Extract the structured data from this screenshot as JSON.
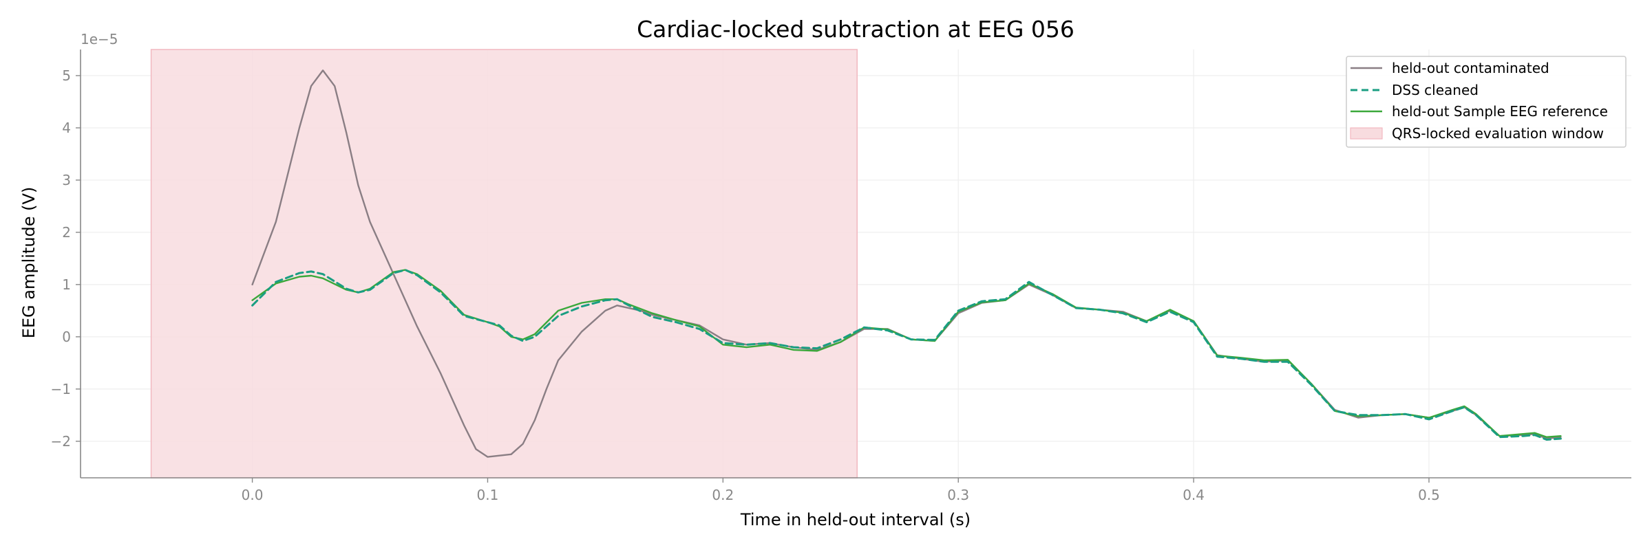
{
  "chart_data": {
    "type": "line",
    "title": "Cardiac-locked subtraction at EEG 056",
    "xlabel": "Time in held-out interval (s)",
    "ylabel": "EEG amplitude (V)",
    "y_offset_label": "1e−5",
    "xlim": [
      -0.073,
      0.586
    ],
    "ylim": [
      -2.7,
      5.5
    ],
    "x_ticks": [
      0.0,
      0.1,
      0.2,
      0.3,
      0.4,
      0.5
    ],
    "x_tick_labels": [
      "0.0",
      "0.1",
      "0.2",
      "0.3",
      "0.4",
      "0.5"
    ],
    "y_ticks": [
      -2,
      -1,
      0,
      1,
      2,
      3,
      4,
      5
    ],
    "y_tick_labels": [
      "−2",
      "−1",
      "0",
      "1",
      "2",
      "3",
      "4",
      "5"
    ],
    "grid": true,
    "legend_position": "top-right",
    "shaded_region": {
      "x_start": -0.043,
      "x_end": 0.257,
      "color": "#f8dcdf",
      "label": "QRS-locked evaluation window"
    },
    "series": [
      {
        "name": "held-out contaminated",
        "color": "#8a7e84",
        "style": "solid",
        "points": [
          [
            0.0,
            1.0
          ],
          [
            0.01,
            2.2
          ],
          [
            0.02,
            4.0
          ],
          [
            0.025,
            4.8
          ],
          [
            0.03,
            5.1
          ],
          [
            0.035,
            4.8
          ],
          [
            0.04,
            3.9
          ],
          [
            0.045,
            2.9
          ],
          [
            0.05,
            2.2
          ],
          [
            0.06,
            1.2
          ],
          [
            0.07,
            0.2
          ],
          [
            0.08,
            -0.7
          ],
          [
            0.09,
            -1.7
          ],
          [
            0.095,
            -2.15
          ],
          [
            0.1,
            -2.3
          ],
          [
            0.11,
            -2.25
          ],
          [
            0.115,
            -2.05
          ],
          [
            0.12,
            -1.6
          ],
          [
            0.125,
            -1.0
          ],
          [
            0.13,
            -0.45
          ],
          [
            0.14,
            0.1
          ],
          [
            0.15,
            0.5
          ],
          [
            0.155,
            0.6
          ],
          [
            0.16,
            0.55
          ],
          [
            0.165,
            0.5
          ],
          [
            0.17,
            0.42
          ],
          [
            0.18,
            0.32
          ],
          [
            0.19,
            0.22
          ],
          [
            0.2,
            -0.05
          ],
          [
            0.21,
            -0.15
          ],
          [
            0.22,
            -0.12
          ],
          [
            0.23,
            -0.2
          ],
          [
            0.24,
            -0.25
          ],
          [
            0.25,
            -0.1
          ],
          [
            0.26,
            0.15
          ],
          [
            0.27,
            0.15
          ],
          [
            0.28,
            -0.05
          ],
          [
            0.29,
            -0.08
          ],
          [
            0.3,
            0.45
          ],
          [
            0.31,
            0.65
          ],
          [
            0.32,
            0.7
          ],
          [
            0.33,
            1.0
          ],
          [
            0.34,
            0.8
          ],
          [
            0.35,
            0.55
          ],
          [
            0.36,
            0.52
          ],
          [
            0.37,
            0.48
          ],
          [
            0.38,
            0.3
          ],
          [
            0.39,
            0.5
          ],
          [
            0.4,
            0.3
          ],
          [
            0.41,
            -0.35
          ],
          [
            0.42,
            -0.42
          ],
          [
            0.43,
            -0.48
          ],
          [
            0.44,
            -0.45
          ],
          [
            0.45,
            -0.9
          ],
          [
            0.46,
            -1.4
          ],
          [
            0.47,
            -1.55
          ],
          [
            0.48,
            -1.5
          ],
          [
            0.49,
            -1.48
          ],
          [
            0.5,
            -1.55
          ],
          [
            0.51,
            -1.42
          ],
          [
            0.515,
            -1.35
          ],
          [
            0.52,
            -1.5
          ],
          [
            0.53,
            -1.9
          ],
          [
            0.54,
            -1.88
          ],
          [
            0.545,
            -1.86
          ],
          [
            0.55,
            -1.95
          ],
          [
            0.556,
            -1.92
          ]
        ]
      },
      {
        "name": "DSS cleaned",
        "color": "#1a9e82",
        "style": "dashed",
        "points": [
          [
            0.0,
            0.6
          ],
          [
            0.01,
            1.05
          ],
          [
            0.02,
            1.22
          ],
          [
            0.025,
            1.25
          ],
          [
            0.03,
            1.2
          ],
          [
            0.04,
            0.92
          ],
          [
            0.045,
            0.85
          ],
          [
            0.05,
            0.9
          ],
          [
            0.06,
            1.22
          ],
          [
            0.065,
            1.28
          ],
          [
            0.07,
            1.18
          ],
          [
            0.08,
            0.85
          ],
          [
            0.09,
            0.4
          ],
          [
            0.1,
            0.28
          ],
          [
            0.105,
            0.22
          ],
          [
            0.11,
            0.02
          ],
          [
            0.115,
            -0.08
          ],
          [
            0.12,
            0.0
          ],
          [
            0.13,
            0.4
          ],
          [
            0.14,
            0.58
          ],
          [
            0.15,
            0.7
          ],
          [
            0.155,
            0.72
          ],
          [
            0.16,
            0.6
          ],
          [
            0.17,
            0.38
          ],
          [
            0.18,
            0.28
          ],
          [
            0.19,
            0.15
          ],
          [
            0.2,
            -0.12
          ],
          [
            0.21,
            -0.15
          ],
          [
            0.22,
            -0.12
          ],
          [
            0.23,
            -0.2
          ],
          [
            0.24,
            -0.22
          ],
          [
            0.25,
            -0.05
          ],
          [
            0.26,
            0.18
          ],
          [
            0.27,
            0.12
          ],
          [
            0.28,
            -0.05
          ],
          [
            0.29,
            -0.06
          ],
          [
            0.3,
            0.5
          ],
          [
            0.31,
            0.68
          ],
          [
            0.32,
            0.72
          ],
          [
            0.33,
            1.05
          ],
          [
            0.34,
            0.8
          ],
          [
            0.35,
            0.55
          ],
          [
            0.36,
            0.52
          ],
          [
            0.37,
            0.45
          ],
          [
            0.38,
            0.28
          ],
          [
            0.39,
            0.48
          ],
          [
            0.4,
            0.28
          ],
          [
            0.41,
            -0.38
          ],
          [
            0.42,
            -0.42
          ],
          [
            0.43,
            -0.48
          ],
          [
            0.44,
            -0.48
          ],
          [
            0.45,
            -0.92
          ],
          [
            0.46,
            -1.42
          ],
          [
            0.47,
            -1.5
          ],
          [
            0.48,
            -1.5
          ],
          [
            0.49,
            -1.48
          ],
          [
            0.5,
            -1.58
          ],
          [
            0.51,
            -1.42
          ],
          [
            0.515,
            -1.35
          ],
          [
            0.52,
            -1.5
          ],
          [
            0.53,
            -1.92
          ],
          [
            0.54,
            -1.9
          ],
          [
            0.545,
            -1.88
          ],
          [
            0.55,
            -1.97
          ],
          [
            0.556,
            -1.95
          ]
        ]
      },
      {
        "name": "held-out Sample EEG reference",
        "color": "#3aa83a",
        "style": "solid",
        "points": [
          [
            0.0,
            0.7
          ],
          [
            0.01,
            1.02
          ],
          [
            0.02,
            1.15
          ],
          [
            0.025,
            1.17
          ],
          [
            0.03,
            1.12
          ],
          [
            0.04,
            0.9
          ],
          [
            0.045,
            0.85
          ],
          [
            0.05,
            0.92
          ],
          [
            0.06,
            1.24
          ],
          [
            0.065,
            1.28
          ],
          [
            0.07,
            1.2
          ],
          [
            0.08,
            0.88
          ],
          [
            0.09,
            0.42
          ],
          [
            0.1,
            0.28
          ],
          [
            0.105,
            0.2
          ],
          [
            0.11,
            0.0
          ],
          [
            0.115,
            -0.05
          ],
          [
            0.12,
            0.05
          ],
          [
            0.13,
            0.5
          ],
          [
            0.14,
            0.65
          ],
          [
            0.15,
            0.72
          ],
          [
            0.155,
            0.72
          ],
          [
            0.16,
            0.62
          ],
          [
            0.17,
            0.45
          ],
          [
            0.18,
            0.32
          ],
          [
            0.19,
            0.2
          ],
          [
            0.2,
            -0.15
          ],
          [
            0.21,
            -0.2
          ],
          [
            0.22,
            -0.15
          ],
          [
            0.23,
            -0.25
          ],
          [
            0.24,
            -0.27
          ],
          [
            0.25,
            -0.1
          ],
          [
            0.26,
            0.18
          ],
          [
            0.27,
            0.14
          ],
          [
            0.28,
            -0.05
          ],
          [
            0.29,
            -0.08
          ],
          [
            0.3,
            0.48
          ],
          [
            0.31,
            0.66
          ],
          [
            0.32,
            0.7
          ],
          [
            0.33,
            1.02
          ],
          [
            0.34,
            0.82
          ],
          [
            0.35,
            0.56
          ],
          [
            0.36,
            0.52
          ],
          [
            0.37,
            0.46
          ],
          [
            0.38,
            0.3
          ],
          [
            0.39,
            0.52
          ],
          [
            0.4,
            0.3
          ],
          [
            0.41,
            -0.36
          ],
          [
            0.42,
            -0.4
          ],
          [
            0.43,
            -0.45
          ],
          [
            0.44,
            -0.44
          ],
          [
            0.45,
            -0.9
          ],
          [
            0.46,
            -1.42
          ],
          [
            0.47,
            -1.52
          ],
          [
            0.48,
            -1.5
          ],
          [
            0.49,
            -1.48
          ],
          [
            0.5,
            -1.55
          ],
          [
            0.51,
            -1.4
          ],
          [
            0.515,
            -1.33
          ],
          [
            0.52,
            -1.48
          ],
          [
            0.53,
            -1.9
          ],
          [
            0.54,
            -1.86
          ],
          [
            0.545,
            -1.84
          ],
          [
            0.55,
            -1.92
          ],
          [
            0.556,
            -1.9
          ]
        ]
      }
    ]
  }
}
